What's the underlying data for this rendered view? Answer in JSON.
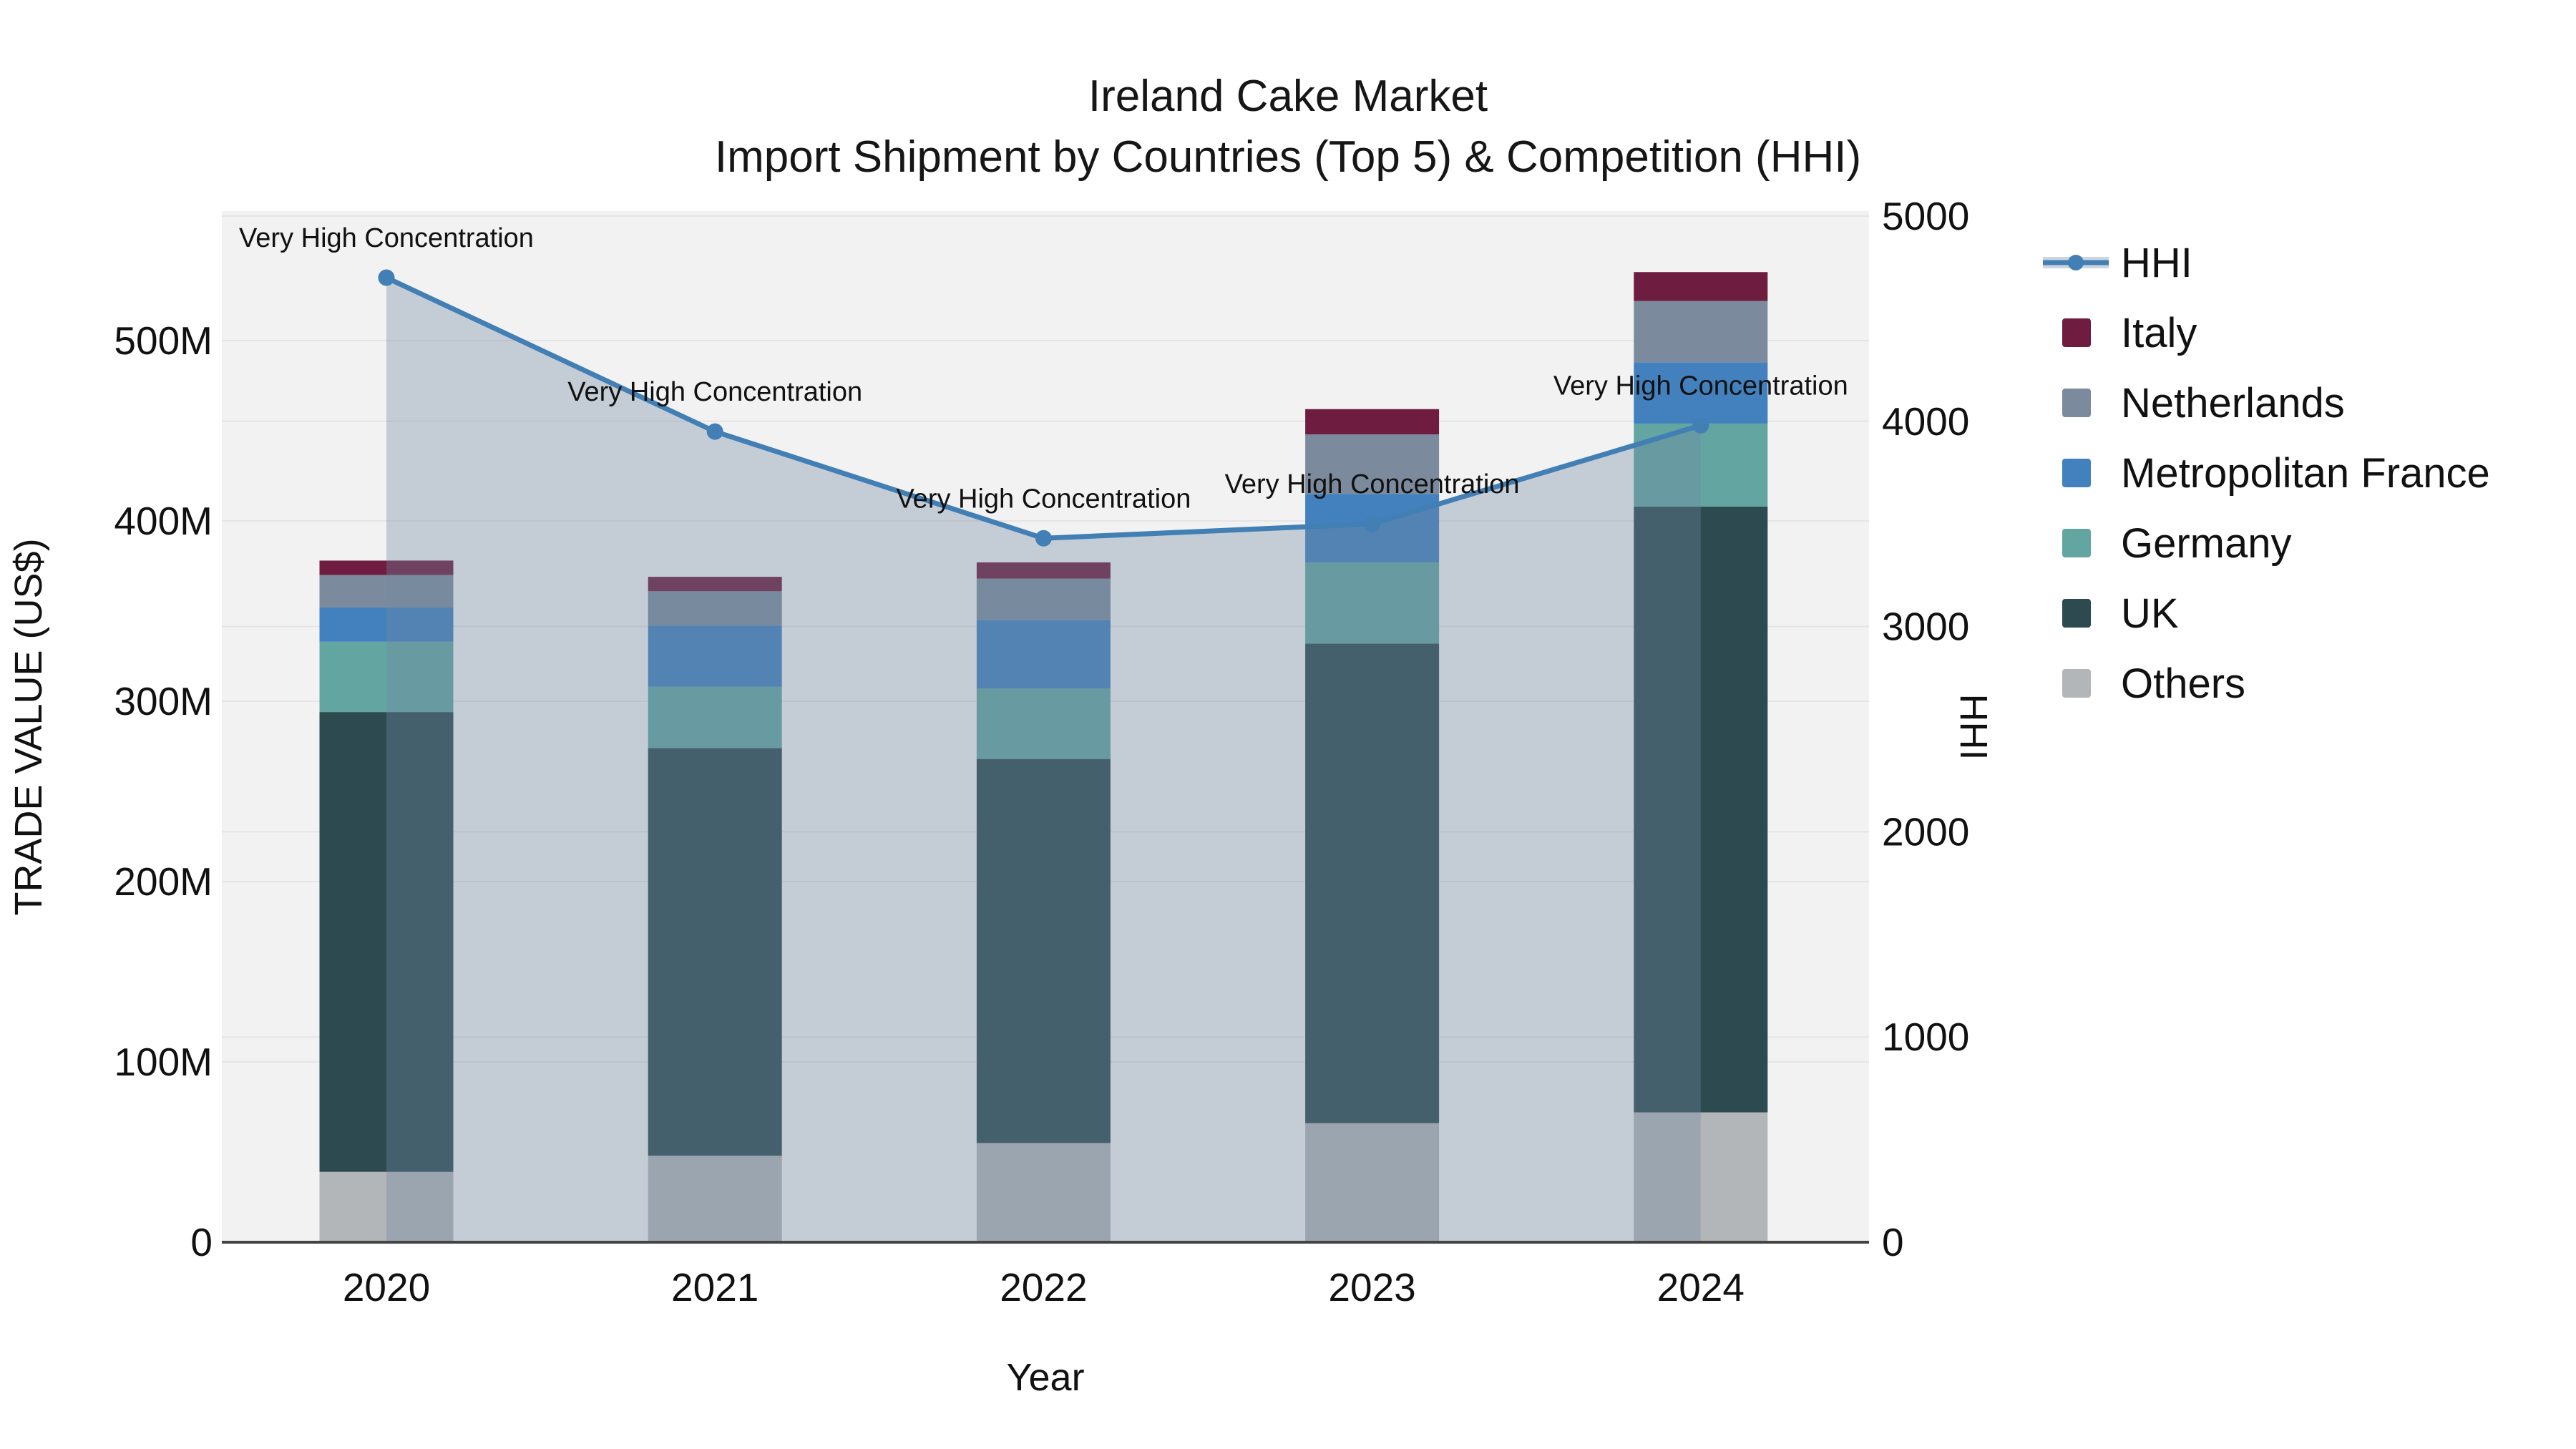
{
  "title": {
    "line1": "Ireland Cake Market",
    "line2": "Import Shipment by Countries (Top 5) & Competition (HHI)"
  },
  "chart_data": {
    "type": "bar",
    "subtype": "stacked-bars-with-line",
    "x": [
      "2020",
      "2021",
      "2022",
      "2023",
      "2024"
    ],
    "bar_unit": "M US$",
    "series": [
      {
        "name": "Others",
        "color": "#B3B6B8",
        "values": [
          39,
          48,
          55,
          66,
          72
        ]
      },
      {
        "name": "UK",
        "color": "#2C4A50",
        "values": [
          255,
          226,
          213,
          266,
          336
        ]
      },
      {
        "name": "Germany",
        "color": "#63A6A1",
        "values": [
          39,
          34,
          39,
          45,
          46
        ]
      },
      {
        "name": "Metropolitan France",
        "color": "#4281BD",
        "values": [
          19,
          34,
          38,
          38,
          34
        ]
      },
      {
        "name": "Netherlands",
        "color": "#7B8B9D",
        "values": [
          18,
          19,
          23,
          33,
          34
        ]
      },
      {
        "name": "Italy",
        "color": "#6E1C3F",
        "values": [
          8,
          8,
          9,
          14,
          16
        ]
      }
    ],
    "bar_totals": [
      378,
      369,
      377,
      462,
      538
    ],
    "line_series": {
      "name": "HHI",
      "type": "line+area",
      "color": "#417FB5",
      "area_color": "rgba(114,135,162,0.36)",
      "values": [
        4700,
        3950,
        3430,
        3500,
        3980
      ]
    },
    "annotations": [
      {
        "x": "2020",
        "text": "Very High Concentration"
      },
      {
        "x": "2021",
        "text": "Very High Concentration"
      },
      {
        "x": "2022",
        "text": "Very High Concentration"
      },
      {
        "x": "2023",
        "text": "Very High Concentration"
      },
      {
        "x": "2024",
        "text": "Very High Concentration"
      }
    ],
    "left_axis": {
      "title": "TRADE VALUE (US$)",
      "tick_labels": [
        "0",
        "100M",
        "200M",
        "300M",
        "400M",
        "500M"
      ],
      "tick_values": [
        0,
        100,
        200,
        300,
        400,
        500
      ],
      "range": [
        0,
        572
      ]
    },
    "right_axis": {
      "title": "HHI",
      "tick_labels": [
        "0",
        "1000",
        "2000",
        "3000",
        "4000",
        "5000"
      ],
      "tick_values": [
        0,
        1000,
        2000,
        3000,
        4000,
        5000
      ],
      "range": [
        0,
        5025
      ]
    },
    "x_axis": {
      "title": "Year"
    },
    "legend_position": "right",
    "grid": true,
    "legend": [
      {
        "label": "HHI",
        "type": "line",
        "color": "#417FB5"
      },
      {
        "label": "Italy",
        "type": "square",
        "color": "#6E1C3F"
      },
      {
        "label": "Netherlands",
        "type": "square",
        "color": "#7B8B9D"
      },
      {
        "label": "Metropolitan France",
        "type": "square",
        "color": "#4281BD"
      },
      {
        "label": "Germany",
        "type": "square",
        "color": "#63A6A1"
      },
      {
        "label": "UK",
        "type": "square",
        "color": "#2C4A50"
      },
      {
        "label": "Others",
        "type": "square",
        "color": "#B3B6B8"
      }
    ],
    "colors": {
      "plot_background": "#F2F2F3",
      "gridline": "#E5E5E7",
      "axis_line": "#444444",
      "text": "#111111"
    }
  }
}
